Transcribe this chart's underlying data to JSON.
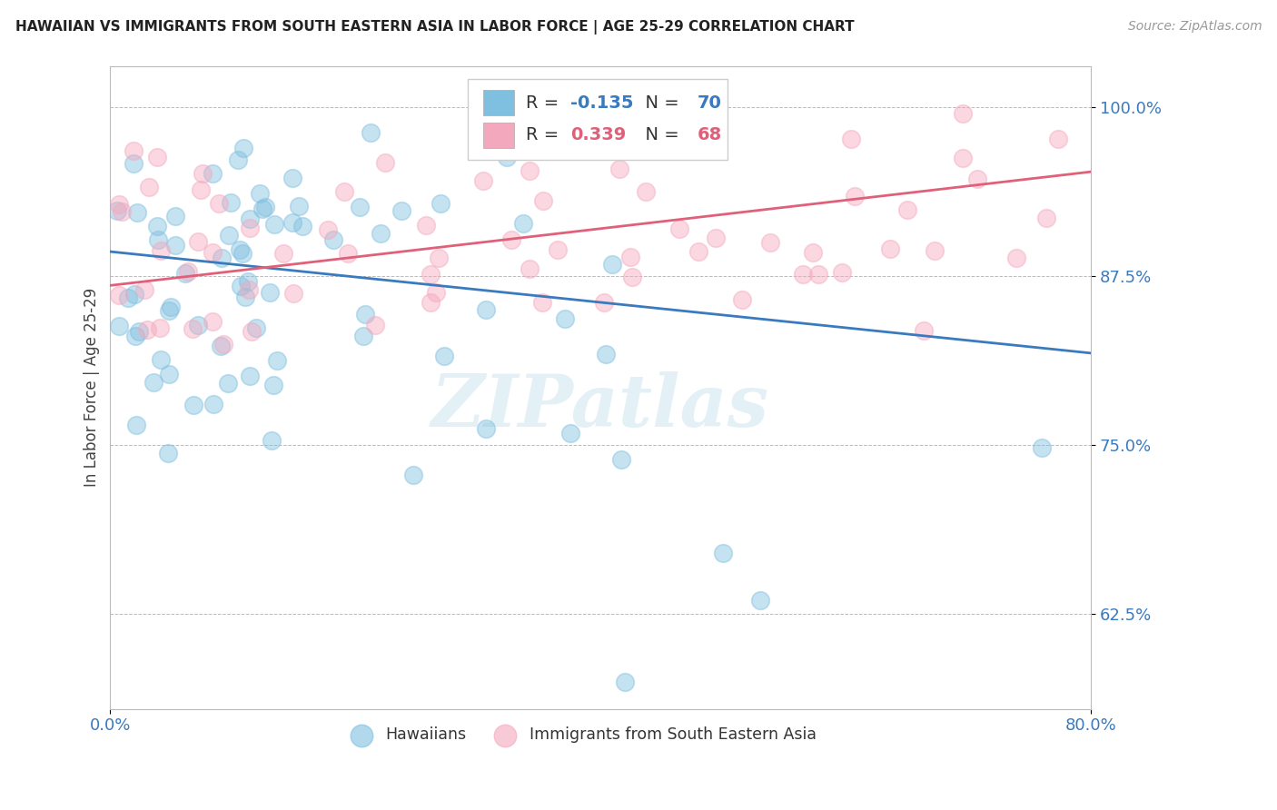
{
  "title": "HAWAIIAN VS IMMIGRANTS FROM SOUTH EASTERN ASIA IN LABOR FORCE | AGE 25-29 CORRELATION CHART",
  "source": "Source: ZipAtlas.com",
  "ylabel": "In Labor Force | Age 25-29",
  "xlim": [
    0.0,
    0.8
  ],
  "ylim": [
    0.555,
    1.03
  ],
  "yticks": [
    0.625,
    0.75,
    0.875,
    1.0
  ],
  "ytick_labels": [
    "62.5%",
    "75.0%",
    "87.5%",
    "100.0%"
  ],
  "blue_color": "#7fbfdf",
  "pink_color": "#f4a8be",
  "blue_line_color": "#3a7abf",
  "pink_line_color": "#e0607a",
  "legend_blue_color": "#7fbfdf",
  "legend_pink_color": "#f4a8be",
  "R_blue": -0.135,
  "N_blue": 70,
  "R_pink": 0.339,
  "N_pink": 68,
  "blue_trend_x": [
    0.0,
    0.8
  ],
  "blue_trend_y": [
    0.893,
    0.818
  ],
  "pink_trend_x": [
    0.0,
    0.8
  ],
  "pink_trend_y": [
    0.868,
    0.952
  ]
}
